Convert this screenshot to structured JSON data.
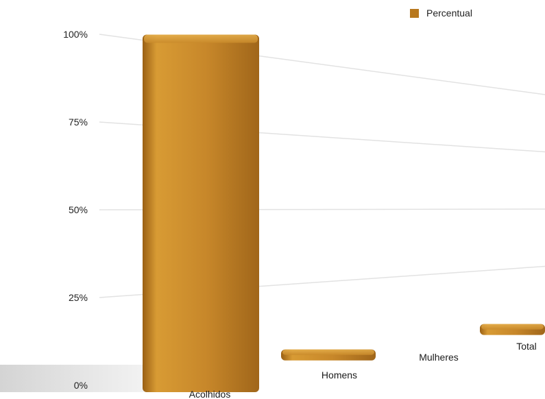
{
  "chart_data": {
    "type": "bar",
    "categories": [
      "Acolhidos",
      "Homens",
      "Mulheres",
      "Total"
    ],
    "series": [
      {
        "name": "Percentual",
        "values": [
          100,
          4,
          0,
          3
        ]
      }
    ],
    "yticks": [
      "0%",
      "25%",
      "50%",
      "75%",
      "100%"
    ],
    "ylim": [
      0,
      100
    ],
    "legend_position": "top-right",
    "grid": true,
    "colors": {
      "bar": "#c98a2a",
      "bar_dark": "#8a5412",
      "bar_light": "#e0a23c",
      "legend": "#b8781e"
    }
  }
}
